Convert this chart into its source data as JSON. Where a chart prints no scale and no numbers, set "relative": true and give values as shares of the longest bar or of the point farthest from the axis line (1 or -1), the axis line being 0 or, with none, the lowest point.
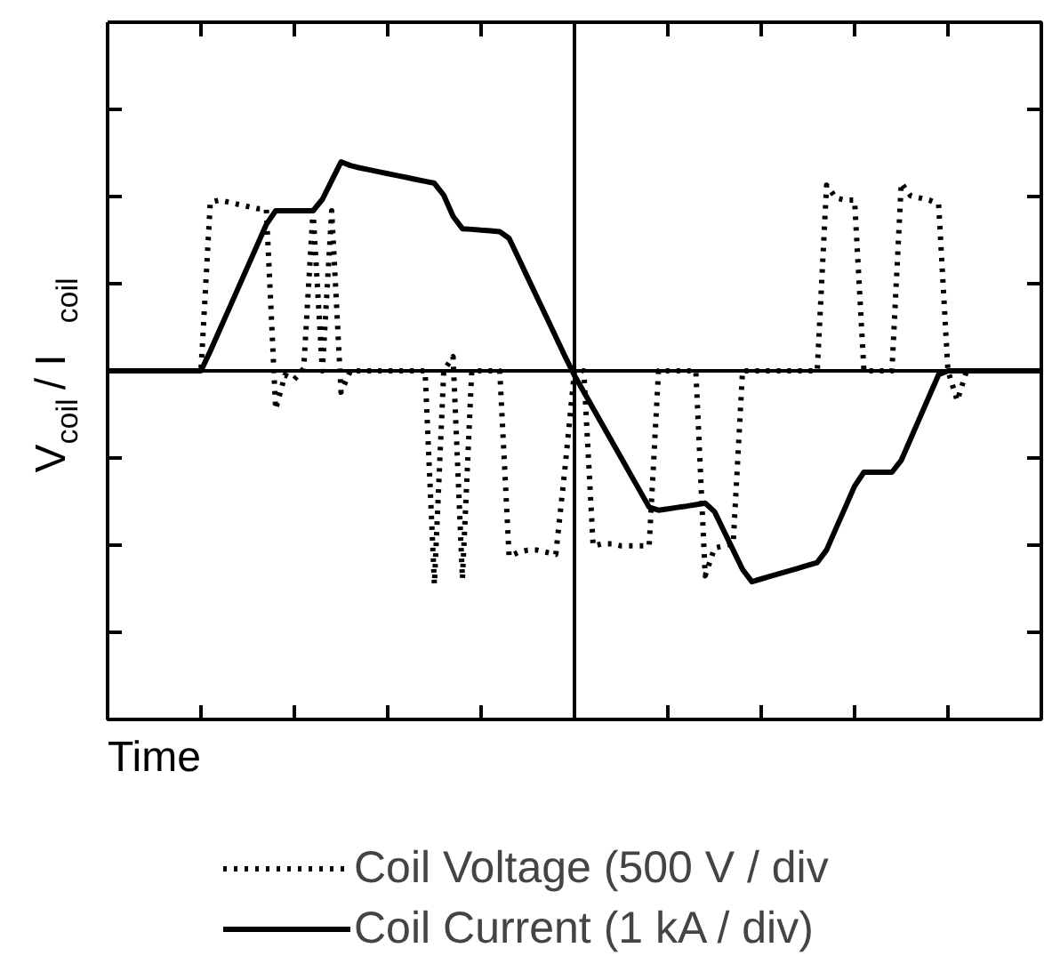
{
  "chart_data": {
    "type": "line",
    "relative": true,
    "xlabel": "Time",
    "ylabel": "V$_{coil}$ / I$_{coil}$",
    "categories": [
      null,
      null,
      null,
      null,
      null,
      null,
      null,
      null,
      null,
      null,
      null,
      null,
      null,
      null,
      null,
      null,
      null,
      null,
      null,
      null,
      null,
      null,
      null,
      null,
      null,
      null,
      null,
      null,
      null,
      null,
      null,
      null,
      null,
      null,
      null,
      null,
      null,
      null,
      null,
      null,
      null,
      null,
      null,
      null,
      null,
      null,
      null,
      null,
      null,
      null,
      null,
      null,
      null,
      null,
      null,
      null,
      null,
      null,
      null,
      null,
      null,
      null,
      null,
      null,
      null,
      null,
      null,
      null,
      null,
      null,
      null,
      null,
      null,
      null,
      null,
      null,
      null,
      null,
      null,
      null,
      null,
      null,
      null,
      null,
      null,
      null,
      null,
      null,
      null,
      null,
      null,
      null,
      null,
      null,
      null,
      null,
      null,
      null,
      null,
      null,
      null
    ],
    "series": [
      {
        "name": "Coil Voltage (500 V / div",
        "color": "#000000",
        "line_style": "dotted",
        "values": [
          0,
          0,
          0,
          0,
          0,
          0,
          0,
          0,
          0,
          0,
          0,
          0.79,
          0.8,
          0.79,
          0.78,
          0.77,
          0.76,
          0.758,
          -0.18,
          -0.02,
          -0.04,
          0.01,
          0.75,
          0,
          0.75,
          -0.1,
          0,
          0,
          0,
          0,
          0,
          0,
          0,
          0,
          0,
          -1.0,
          0,
          0.067,
          -0.975,
          0,
          0,
          0,
          0,
          -0.87,
          -0.85,
          -0.84,
          -0.84,
          -0.85,
          -0.86,
          -0.45,
          0,
          0,
          -0.82,
          -0.81,
          -0.81,
          -0.82,
          -0.82,
          -0.82,
          -0.82,
          0,
          0,
          0,
          0,
          0,
          -0.96,
          -0.83,
          -0.82,
          -0.81,
          0,
          0,
          0,
          0,
          0,
          0,
          0,
          0,
          0,
          0.87,
          0.81,
          0.8,
          0.8,
          0,
          0,
          0,
          0,
          0.88,
          0.82,
          0.81,
          0.8,
          0.78,
          0,
          -0.14,
          0,
          0,
          0,
          0,
          0,
          0,
          0,
          0,
          0
        ]
      },
      {
        "name": "Coil Current (1 kA / div)",
        "color": "#000000",
        "line_style": "solid",
        "values": [
          0,
          0,
          0,
          0,
          0,
          0,
          0,
          0,
          0,
          0,
          0,
          0.093,
          0.192,
          0.29,
          0.389,
          0.488,
          0.587,
          0.686,
          0.75,
          0.75,
          0.75,
          0.75,
          0.75,
          0.803,
          0.891,
          0.979,
          0.962,
          0.951,
          0.942,
          0.933,
          0.924,
          0.915,
          0.906,
          0.897,
          0.888,
          0.879,
          0.823,
          0.724,
          0.666,
          0.663,
          0.659,
          0.656,
          0.652,
          0.621,
          0.529,
          0.436,
          0.344,
          0.252,
          0.159,
          0.067,
          -0.022,
          -0.099,
          -0.176,
          -0.253,
          -0.33,
          -0.407,
          -0.485,
          -0.562,
          -0.639,
          -0.653,
          -0.647,
          -0.64,
          -0.634,
          -0.627,
          -0.62,
          -0.66,
          -0.75,
          -0.84,
          -0.93,
          -0.988,
          -0.975,
          -0.962,
          -0.949,
          -0.937,
          -0.924,
          -0.911,
          -0.898,
          -0.839,
          -0.739,
          -0.64,
          -0.54,
          -0.475,
          -0.475,
          -0.475,
          -0.475,
          -0.419,
          -0.319,
          -0.218,
          -0.118,
          -0.018,
          0,
          0,
          0,
          0,
          0,
          0,
          0,
          0,
          0,
          0,
          0
        ]
      }
    ],
    "legend": "bottom"
  }
}
